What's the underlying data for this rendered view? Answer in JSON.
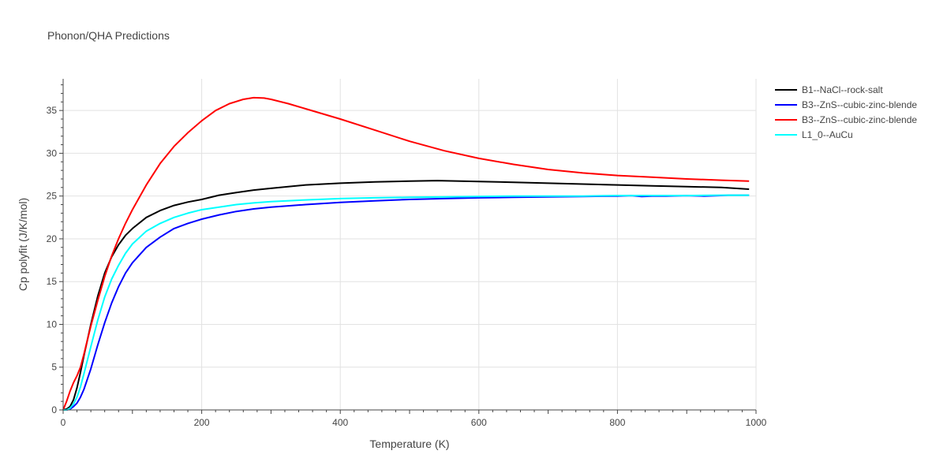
{
  "chart_data": {
    "type": "line",
    "title": "Phonon/QHA Predictions",
    "xlabel": "Temperature (K)",
    "ylabel": "Cp polyfit (J/K/mol)",
    "xlim": [
      0,
      1000
    ],
    "ylim": [
      0,
      38.7
    ],
    "xticks": [
      0,
      200,
      400,
      600,
      800,
      1000
    ],
    "yticks": [
      0,
      5,
      10,
      15,
      20,
      25,
      30,
      35
    ],
    "grid": true,
    "legend_position": "top-right",
    "series": [
      {
        "name": "B1--NaCl--rock-salt",
        "color": "#000000",
        "x": [
          0,
          5,
          10,
          15,
          20,
          25,
          30,
          40,
          50,
          60,
          70,
          80,
          90,
          100,
          120,
          140,
          160,
          180,
          200,
          225,
          250,
          275,
          300,
          350,
          400,
          450,
          500,
          540,
          600,
          650,
          700,
          750,
          800,
          850,
          900,
          950,
          990
        ],
        "y": [
          0,
          0.1,
          0.4,
          1.2,
          2.6,
          4.4,
          6.3,
          10.0,
          13.3,
          16.0,
          17.9,
          19.3,
          20.4,
          21.2,
          22.5,
          23.3,
          23.9,
          24.3,
          24.6,
          25.1,
          25.4,
          25.7,
          25.9,
          26.3,
          26.5,
          26.65,
          26.75,
          26.8,
          26.7,
          26.6,
          26.5,
          26.4,
          26.3,
          26.2,
          26.1,
          26.0,
          25.8
        ]
      },
      {
        "name": "B3--ZnS--cubic-zinc-blende",
        "color": "#0000ff",
        "x": [
          0,
          5,
          10,
          15,
          20,
          25,
          30,
          40,
          50,
          60,
          70,
          80,
          90,
          100,
          120,
          140,
          160,
          180,
          200,
          225,
          250,
          275,
          300,
          350,
          400,
          450,
          500,
          550,
          600,
          650,
          700,
          750,
          800,
          820,
          835,
          850,
          870,
          900,
          925,
          945,
          960,
          990
        ],
        "y": [
          0,
          0,
          0.1,
          0.4,
          0.8,
          1.5,
          2.4,
          4.8,
          7.6,
          10.2,
          12.5,
          14.4,
          16.0,
          17.2,
          19.0,
          20.2,
          21.2,
          21.8,
          22.3,
          22.8,
          23.2,
          23.5,
          23.7,
          24.0,
          24.25,
          24.45,
          24.6,
          24.7,
          24.8,
          24.85,
          24.9,
          24.95,
          25.0,
          25.05,
          24.95,
          25.0,
          25.0,
          25.05,
          25.0,
          25.05,
          25.1,
          25.1
        ]
      },
      {
        "name": "B3--ZnS--cubic-zinc-blende",
        "color": "#ff0000",
        "x": [
          0,
          5,
          10,
          15,
          20,
          25,
          30,
          40,
          50,
          60,
          70,
          80,
          90,
          100,
          120,
          140,
          160,
          180,
          200,
          220,
          240,
          260,
          275,
          290,
          300,
          325,
          350,
          400,
          450,
          500,
          550,
          600,
          650,
          700,
          750,
          800,
          850,
          900,
          950,
          990
        ],
        "y": [
          0,
          1.0,
          2.2,
          3.2,
          4.0,
          5.0,
          6.5,
          9.8,
          12.8,
          15.6,
          18.0,
          20.0,
          21.8,
          23.4,
          26.3,
          28.8,
          30.8,
          32.4,
          33.8,
          35.0,
          35.8,
          36.3,
          36.5,
          36.45,
          36.3,
          35.8,
          35.2,
          34.0,
          32.7,
          31.4,
          30.3,
          29.4,
          28.7,
          28.1,
          27.7,
          27.4,
          27.2,
          27.0,
          26.85,
          26.75
        ]
      },
      {
        "name": "L1_0--AuCu",
        "color": "#00ffff",
        "x": [
          0,
          5,
          10,
          15,
          20,
          25,
          30,
          40,
          50,
          60,
          70,
          80,
          90,
          100,
          120,
          140,
          160,
          180,
          200,
          225,
          250,
          275,
          300,
          350,
          400,
          450,
          500,
          550,
          600,
          650,
          700,
          750,
          800,
          850,
          900,
          950,
          990
        ],
        "y": [
          0,
          0,
          0.2,
          0.7,
          1.5,
          2.7,
          4.2,
          7.4,
          10.5,
          13.2,
          15.3,
          16.9,
          18.3,
          19.4,
          20.9,
          21.8,
          22.5,
          23.0,
          23.4,
          23.7,
          24.0,
          24.2,
          24.35,
          24.55,
          24.7,
          24.8,
          24.85,
          24.9,
          24.95,
          25.0,
          25.0,
          25.0,
          25.05,
          25.05,
          25.05,
          25.1,
          25.1
        ]
      }
    ]
  }
}
